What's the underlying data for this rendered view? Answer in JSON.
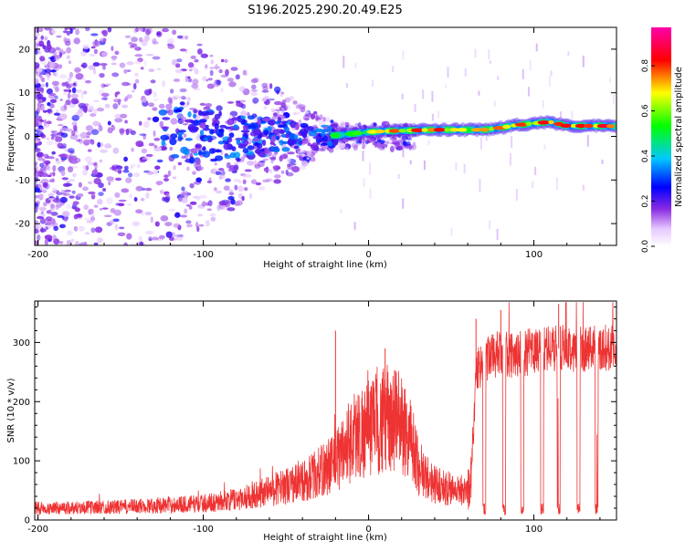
{
  "title": "S196.2025.290.20.49.E25",
  "chart_data": [
    {
      "type": "heatmap",
      "xlabel": "Height of straight line (km)",
      "ylabel": "Frequency (Hz)",
      "xlim": [
        -202,
        150
      ],
      "ylim": [
        -25,
        25
      ],
      "xticks": [
        -200,
        -100,
        0,
        100
      ],
      "yticks": [
        -20,
        -10,
        0,
        10,
        20
      ],
      "colorbar": {
        "label": "Normalized spectral amplitude",
        "ticks": [
          "0.0",
          "0.2",
          "0.4",
          "0.6",
          "0.8"
        ],
        "range": [
          0,
          0.97
        ],
        "colors": [
          "#ffffff",
          "#d9a8ff",
          "#8a2be2",
          "#0000ff",
          "#00ffff",
          "#00ff00",
          "#ffff00",
          "#ff0000",
          "#ff00ff"
        ]
      },
      "ridge": [
        {
          "x": -20,
          "y": 0.2,
          "a": 0.55
        },
        {
          "x": -10,
          "y": 0.6,
          "a": 0.6
        },
        {
          "x": 0,
          "y": 1.0,
          "a": 0.65
        },
        {
          "x": 10,
          "y": 1.2,
          "a": 0.9
        },
        {
          "x": 20,
          "y": 1.3,
          "a": 0.75
        },
        {
          "x": 30,
          "y": 1.4,
          "a": 0.85
        },
        {
          "x": 40,
          "y": 1.5,
          "a": 0.9
        },
        {
          "x": 50,
          "y": 1.5,
          "a": 0.8
        },
        {
          "x": 60,
          "y": 1.5,
          "a": 0.7
        },
        {
          "x": 70,
          "y": 1.5,
          "a": 0.85
        },
        {
          "x": 80,
          "y": 2.0,
          "a": 0.8
        },
        {
          "x": 90,
          "y": 2.6,
          "a": 0.85
        },
        {
          "x": 100,
          "y": 3.0,
          "a": 0.75
        },
        {
          "x": 110,
          "y": 3.3,
          "a": 0.95
        },
        {
          "x": 120,
          "y": 2.4,
          "a": 0.9
        },
        {
          "x": 130,
          "y": 2.4,
          "a": 0.9
        },
        {
          "x": 140,
          "y": 2.4,
          "a": 0.9
        },
        {
          "x": 150,
          "y": 2.3,
          "a": 0.9
        }
      ],
      "notes": "Scattered low-amplitude purple noise at heights below about -60 km; a blue/cyan cluster converges toward 0 Hz between -120 and -20 km; a narrow bright ridge near 1-3 Hz from -20 km to 150 km."
    },
    {
      "type": "line",
      "xlabel": "Height of straight line (km)",
      "ylabel": "SNR (10 * v/v)",
      "xlim": [
        -202,
        150
      ],
      "ylim": [
        0,
        370
      ],
      "xticks": [
        -200,
        -100,
        0,
        100
      ],
      "yticks": [
        0,
        100,
        200,
        300
      ],
      "color": "#ee3333",
      "series": [
        {
          "name": "SNR",
          "envelope": {
            "x": [
              -202,
              -150,
              -100,
              -80,
              -60,
              -40,
              -30,
              -20,
              -10,
              0,
              10,
              20,
              25,
              30,
              40,
              50,
              60,
              62,
              65,
              70,
              80,
              90,
              100,
              110,
              120,
              130,
              140,
              150
            ],
            "y": [
              20,
              22,
              28,
              35,
              50,
              65,
              80,
              100,
              140,
              155,
              170,
              165,
              140,
              90,
              60,
              52,
              50,
              70,
              250,
              275,
              280,
              280,
              285,
              290,
              290,
              290,
              290,
              290
            ]
          },
          "spikes": [
            {
              "x": -20,
              "y": 320
            },
            {
              "x": 10,
              "y": 290
            },
            {
              "x": 65,
              "y": 340
            },
            {
              "x": 80,
              "y": 355
            },
            {
              "x": 115,
              "y": 365
            }
          ],
          "dropouts": [
            70,
            82,
            93,
            105,
            115,
            127,
            138
          ]
        }
      ]
    }
  ]
}
